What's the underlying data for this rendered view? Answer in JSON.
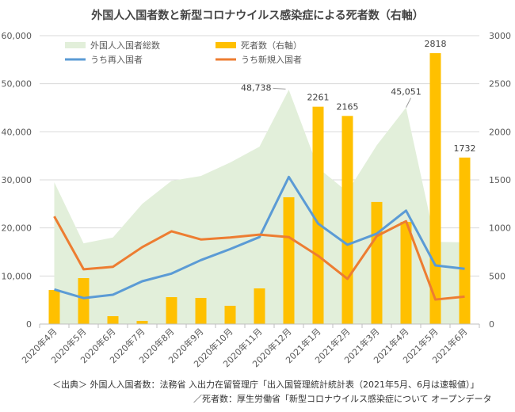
{
  "chart_data": {
    "type": "bar+line+area",
    "title": "外国人入国者数と新型コロナウイルス感染症による死者数（右軸）",
    "categories": [
      "2020年4月",
      "2020年5月",
      "2020年6月",
      "2020年7月",
      "2020年8月",
      "2020年9月",
      "2020年10月",
      "2020年11月",
      "2020年12月",
      "2021年1月",
      "2021年2月",
      "2021年3月",
      "2021年4月",
      "2021年5月",
      "2021年6月"
    ],
    "left_axis": {
      "ylim": [
        0,
        60000
      ],
      "ticks": [
        "0",
        "10,000",
        "20,000",
        "30,000",
        "40,000",
        "50,000",
        "60,000"
      ]
    },
    "right_axis": {
      "ylim": [
        0,
        3000
      ],
      "ticks": [
        "0",
        "500",
        "1000",
        "1500",
        "2000",
        "2500",
        "3000"
      ]
    },
    "series": [
      {
        "name": "外国人入国者総数",
        "type": "area",
        "axis": "left",
        "color": "#e2efda",
        "values": [
          29500,
          16800,
          18000,
          25000,
          29800,
          30800,
          33600,
          36900,
          48738,
          32500,
          27500,
          37200,
          45051,
          17100,
          17000
        ]
      },
      {
        "name": "死者数（右軸）",
        "type": "bar",
        "axis": "right",
        "color": "#ffc000",
        "values": [
          354,
          478,
          82,
          33,
          280,
          272,
          190,
          371,
          1319,
          2261,
          2165,
          1270,
          1063,
          2818,
          1732
        ]
      },
      {
        "name": "うち再入国者",
        "type": "line",
        "axis": "left",
        "color": "#5b9bd5",
        "values": [
          7200,
          5400,
          6100,
          8900,
          10500,
          13300,
          15600,
          18100,
          30600,
          20900,
          16500,
          18800,
          23600,
          12200,
          11500
        ]
      },
      {
        "name": "うち新規入国者",
        "type": "line",
        "axis": "left",
        "color": "#ed7d31",
        "values": [
          22400,
          11400,
          11900,
          16000,
          19300,
          17600,
          18000,
          18600,
          18100,
          14200,
          9400,
          18300,
          21400,
          5100,
          5700
        ]
      }
    ],
    "annotations": [
      {
        "series": 0,
        "index": 8,
        "label": "48,738"
      },
      {
        "series": 0,
        "index": 12,
        "label": "45,051"
      },
      {
        "series": 1,
        "index": 9,
        "label": "2261"
      },
      {
        "series": 1,
        "index": 10,
        "label": "2165"
      },
      {
        "series": 1,
        "index": 13,
        "label": "2818"
      },
      {
        "series": 1,
        "index": 14,
        "label": "1732"
      }
    ],
    "grid": true,
    "legend": "top"
  },
  "source": {
    "line1": "＜出典＞ 外国人入国者数：法務省 入出力在留管理庁「出入国管理統計統計表（2021年5月、6月は速報値）」",
    "line2": "／死者数：厚生労働省「新型コロナウイルス感染症について オープンデータ"
  }
}
